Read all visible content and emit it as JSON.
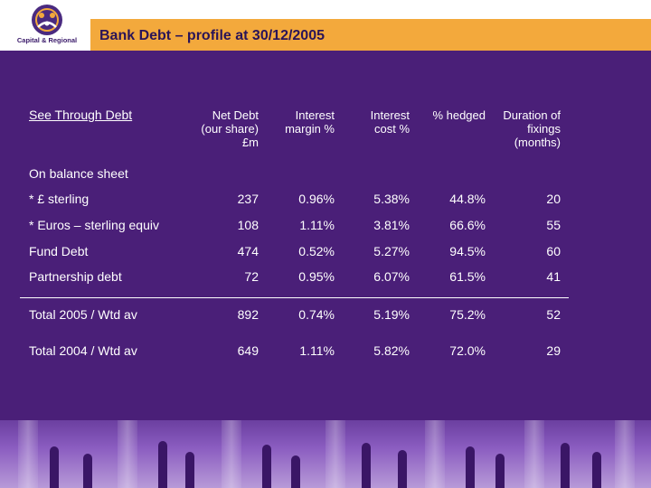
{
  "header": {
    "logo_text": "Capital & Regional",
    "title": "Bank Debt – profile at 30/12/2005"
  },
  "table": {
    "section_label": "See Through Debt",
    "columns": [
      "Net Debt\n(our share)\n£m",
      "Interest\nmargin %",
      "Interest\ncost %",
      "% hedged",
      "Duration of\nfixings\n(months)"
    ],
    "subheading": "On balance sheet",
    "rows": [
      {
        "label": "* £ sterling",
        "values": [
          "237",
          "0.96%",
          "5.38%",
          "44.8%",
          "20"
        ]
      },
      {
        "label": "* Euros – sterling equiv",
        "values": [
          "108",
          "1.11%",
          "3.81%",
          "66.6%",
          "55"
        ]
      },
      {
        "label": "Fund Debt",
        "values": [
          "474",
          "0.52%",
          "5.27%",
          "94.5%",
          "60"
        ]
      },
      {
        "label": "Partnership debt",
        "values": [
          "72",
          "0.95%",
          "6.07%",
          "61.5%",
          "41"
        ]
      }
    ],
    "totals": [
      {
        "label": "Total 2005 / Wtd av",
        "values": [
          "892",
          "0.74%",
          "5.19%",
          "75.2%",
          "52"
        ]
      },
      {
        "label": "Total 2004 / Wtd av",
        "values": [
          "649",
          "1.11%",
          "5.82%",
          "72.0%",
          "29"
        ]
      }
    ]
  },
  "colors": {
    "background": "#4a1f78",
    "title_bar": "#f3a93c",
    "title_text": "#2a1458"
  }
}
